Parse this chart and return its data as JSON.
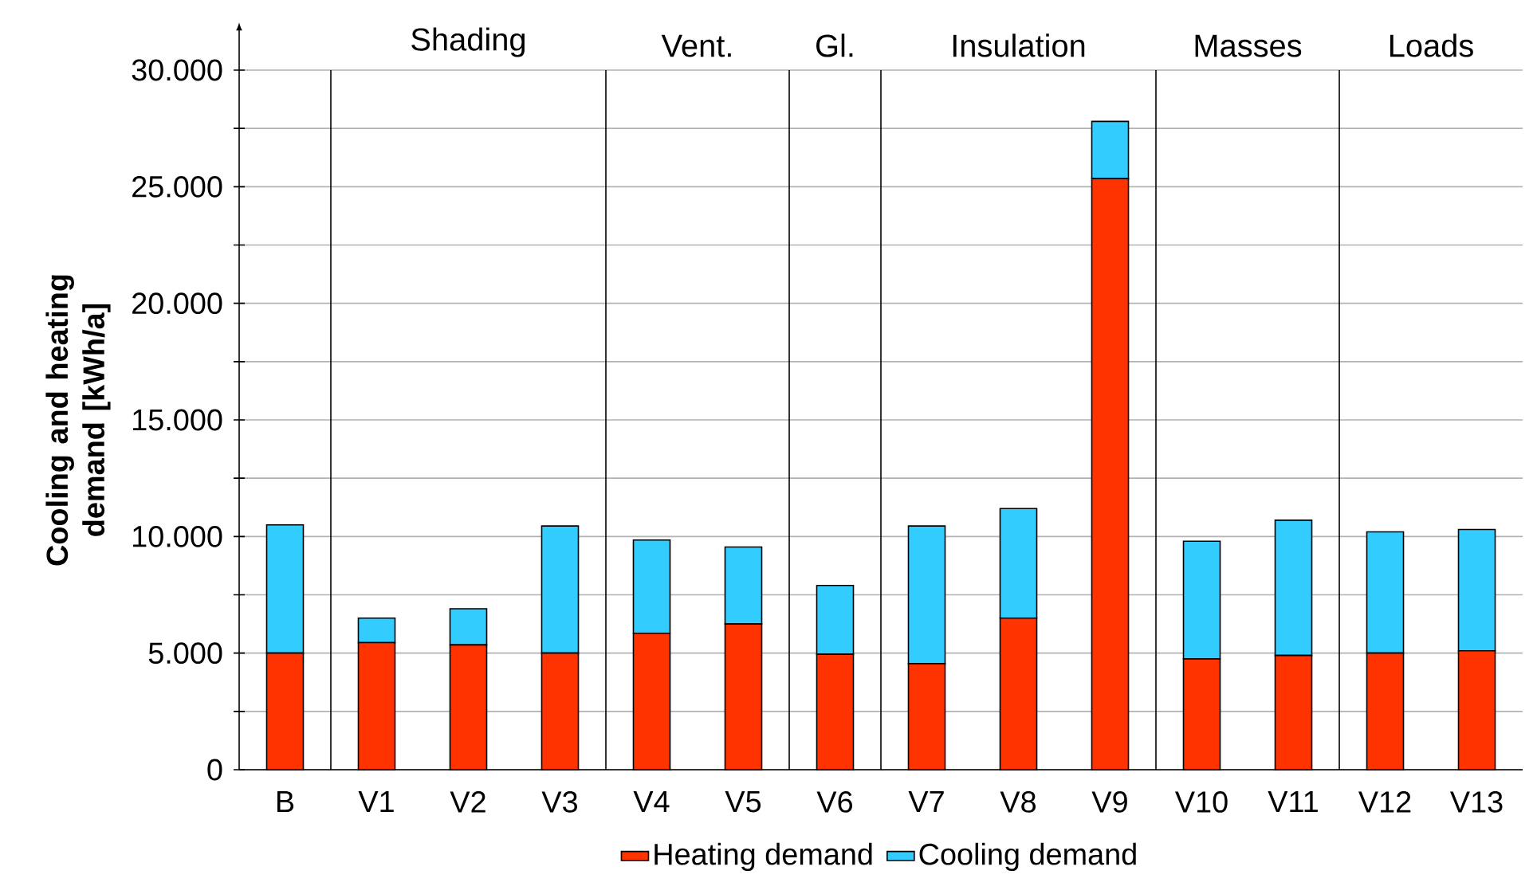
{
  "chart_data": {
    "type": "bar",
    "stacked": true,
    "ylabel": "Cooling and heating demand [kWh/a]",
    "categories": [
      "B",
      "V1",
      "V2",
      "V3",
      "V4",
      "V5",
      "V6",
      "V7",
      "V8",
      "V9",
      "V10",
      "V11",
      "V12",
      "V13"
    ],
    "series": [
      {
        "name": "Heating demand",
        "color": "#ff3300",
        "values": [
          5000,
          5450,
          5350,
          5000,
          5850,
          6250,
          4950,
          4550,
          6500,
          25350,
          4750,
          4900,
          5000,
          5100
        ]
      },
      {
        "name": "Cooling demand",
        "color": "#33ccff",
        "values": [
          5500,
          1050,
          1550,
          5450,
          4000,
          3300,
          2950,
          5900,
          4700,
          2450,
          5050,
          5800,
          5200,
          5200
        ]
      }
    ],
    "ylim": [
      0,
      30000
    ],
    "yticks": [
      {
        "value": 0,
        "label": "0"
      },
      {
        "value": 2500,
        "label": null
      },
      {
        "value": 5000,
        "label": "5.000"
      },
      {
        "value": 7500,
        "label": null
      },
      {
        "value": 10000,
        "label": "10.000"
      },
      {
        "value": 12500,
        "label": null
      },
      {
        "value": 15000,
        "label": "15.000"
      },
      {
        "value": 17500,
        "label": null
      },
      {
        "value": 20000,
        "label": "20.000"
      },
      {
        "value": 22500,
        "label": null
      },
      {
        "value": 25000,
        "label": "25.000"
      },
      {
        "value": 27500,
        "label": null
      },
      {
        "value": 30000,
        "label": "30.000"
      }
    ],
    "grid": "y",
    "legend": "bottom",
    "annotations": [
      "Shading",
      "Vent.",
      "Gl.",
      "Insulation",
      "Masses",
      "Loads"
    ]
  }
}
